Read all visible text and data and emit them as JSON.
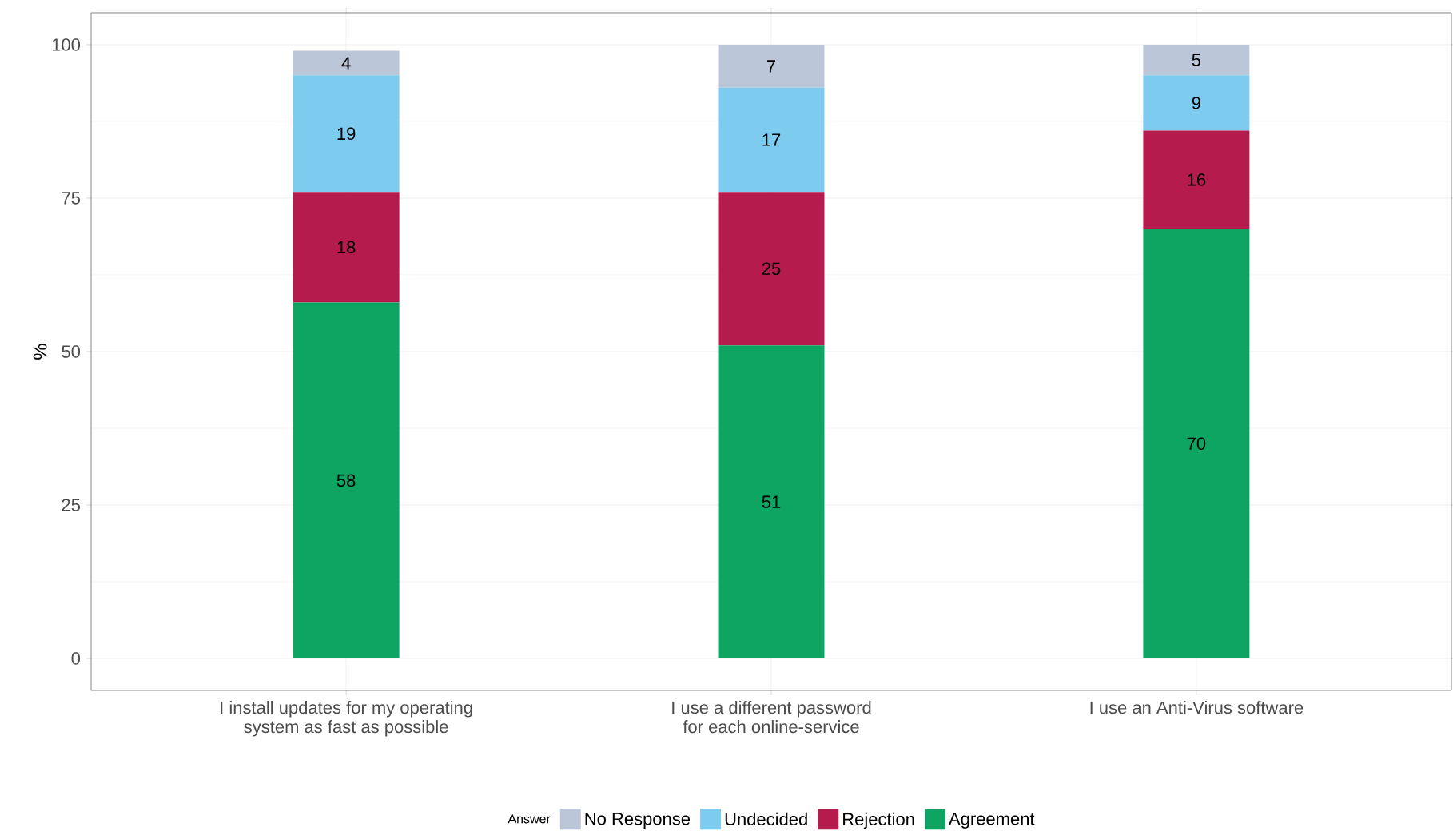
{
  "chart_data": {
    "type": "bar",
    "stacked": true,
    "ylabel": "%",
    "legend_title": "Answer",
    "categories": [
      "I install updates for my operating\nsystem as fast as possible",
      "I use a different password\nfor each online-service",
      "I use an Anti-Virus software"
    ],
    "series": [
      {
        "name": "Agreement",
        "color": "#0ea562",
        "values": [
          58,
          51,
          70
        ]
      },
      {
        "name": "Rejection",
        "color": "#b51b4d",
        "values": [
          18,
          25,
          16
        ]
      },
      {
        "name": "Undecided",
        "color": "#7ecbf0",
        "values": [
          19,
          17,
          9
        ]
      },
      {
        "name": "No Response",
        "color": "#bcc6d9",
        "values": [
          4,
          7,
          5
        ]
      }
    ],
    "ylim": [
      -5.2,
      105.2
    ],
    "yticks": [
      0,
      25,
      50,
      75,
      100
    ],
    "grid": true,
    "legend": "bottom",
    "data_labels": true
  }
}
